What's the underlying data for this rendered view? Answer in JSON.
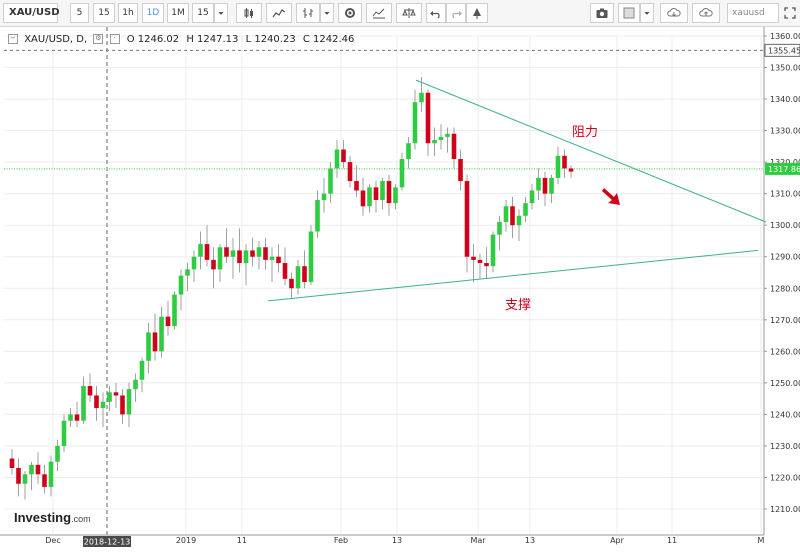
{
  "toolbar": {
    "symbol": "XAU/USD",
    "intervals": [
      "5",
      "15",
      "1h",
      "1D",
      "1M"
    ],
    "selected_interval": "1D",
    "interval_select": "15",
    "search_value": "xauusd",
    "icons": [
      "candles-icon",
      "area-chart-icon",
      "bars-chart-icon",
      "dropdown-chevron-icon",
      "settings-gear-icon",
      "indicators-icon",
      "scales-compare-icon",
      "undo-icon",
      "redo-icon",
      "drawing-tools-icon",
      "camera-icon",
      "template-square-icon",
      "dropdown-chevron-icon",
      "cloud-load-icon",
      "cloud-save-icon",
      "fullscreen-icon"
    ]
  },
  "legend": {
    "symbol": "XAU/USD, D,",
    "open": "O 1246.02",
    "high": "H 1247.13",
    "low": "L 1240.23",
    "close": "C 1242.46"
  },
  "price_axis": {
    "ticks": [
      "1360.00",
      "1350.00",
      "1340.00",
      "1330.00",
      "1320.00",
      "1310.00",
      "1300.00",
      "1290.00",
      "1280.00",
      "1270.00",
      "1260.00",
      "1250.00",
      "1240.00",
      "1230.00",
      "1220.00",
      "1210.00"
    ],
    "dashed_level_label": "1355.45",
    "current_price_label": "1317.86"
  },
  "time_axis": {
    "labels": [
      "Dec",
      "2019",
      "11",
      "Feb",
      "13",
      "Mar",
      "13",
      "Apr",
      "11",
      "M"
    ],
    "crosshair_date": "2018-12-13"
  },
  "annotations": {
    "resistance": "阻力",
    "support": "支撑"
  },
  "branding": {
    "logo": "Investing",
    "logo_suffix": ".com"
  },
  "colors": {
    "up": "#2ecc40",
    "down": "#d0021b",
    "trendline": "#3bb38a",
    "current_price": "#2ecc40",
    "annotation": "#d0021b"
  },
  "chart_data": {
    "type": "candlestick",
    "symbol": "XAU/USD",
    "timeframe": "D",
    "ylim": [
      1205,
      1365
    ],
    "resistance_line": [
      [
        1346,
        1301
      ]
    ],
    "support_line": [
      [
        1276,
        1292
      ]
    ],
    "current_price": 1317.86,
    "dashed_level": 1355.45,
    "candles": [
      [
        1226,
        1229,
        1221,
        1223
      ],
      [
        1223,
        1226,
        1214,
        1218
      ],
      [
        1218,
        1222,
        1213,
        1221
      ],
      [
        1221,
        1225,
        1216,
        1224
      ],
      [
        1224,
        1228,
        1218,
        1221
      ],
      [
        1221,
        1224,
        1215,
        1217
      ],
      [
        1217,
        1227,
        1214,
        1225
      ],
      [
        1225,
        1232,
        1222,
        1230
      ],
      [
        1230,
        1240,
        1228,
        1238
      ],
      [
        1238,
        1242,
        1236,
        1240
      ],
      [
        1240,
        1244,
        1236,
        1238
      ],
      [
        1238,
        1252,
        1237,
        1249
      ],
      [
        1249,
        1253,
        1244,
        1246
      ],
      [
        1246,
        1249,
        1238,
        1242
      ],
      [
        1242,
        1247,
        1236,
        1244
      ],
      [
        1244,
        1249,
        1241,
        1247
      ],
      [
        1247,
        1250,
        1242,
        1246
      ],
      [
        1246,
        1248,
        1237,
        1240
      ],
      [
        1240,
        1250,
        1236,
        1248
      ],
      [
        1248,
        1253,
        1244,
        1251
      ],
      [
        1251,
        1258,
        1247,
        1257
      ],
      [
        1257,
        1269,
        1253,
        1266
      ],
      [
        1266,
        1272,
        1257,
        1260
      ],
      [
        1260,
        1274,
        1258,
        1271
      ],
      [
        1271,
        1276,
        1265,
        1268
      ],
      [
        1268,
        1279,
        1267,
        1278
      ],
      [
        1278,
        1286,
        1273,
        1284
      ],
      [
        1284,
        1288,
        1279,
        1286
      ],
      [
        1286,
        1292,
        1282,
        1290
      ],
      [
        1290,
        1298,
        1286,
        1294
      ],
      [
        1294,
        1300,
        1287,
        1289
      ],
      [
        1289,
        1293,
        1280,
        1286
      ],
      [
        1286,
        1294,
        1282,
        1293
      ],
      [
        1293,
        1299,
        1288,
        1290
      ],
      [
        1290,
        1296,
        1283,
        1292
      ],
      [
        1292,
        1299,
        1285,
        1288
      ],
      [
        1288,
        1294,
        1281,
        1292
      ],
      [
        1292,
        1296,
        1287,
        1290
      ],
      [
        1290,
        1295,
        1286,
        1293
      ],
      [
        1293,
        1296,
        1286,
        1289
      ],
      [
        1289,
        1293,
        1282,
        1290
      ],
      [
        1290,
        1294,
        1285,
        1288
      ],
      [
        1288,
        1293,
        1281,
        1283
      ],
      [
        1283,
        1285,
        1277,
        1280
      ],
      [
        1280,
        1289,
        1278,
        1287
      ],
      [
        1287,
        1292,
        1280,
        1282
      ],
      [
        1282,
        1300,
        1281,
        1298
      ],
      [
        1298,
        1311,
        1296,
        1308
      ],
      [
        1308,
        1315,
        1304,
        1310
      ],
      [
        1310,
        1320,
        1307,
        1318
      ],
      [
        1318,
        1327,
        1315,
        1324
      ],
      [
        1324,
        1327,
        1318,
        1320
      ],
      [
        1320,
        1322,
        1312,
        1314
      ],
      [
        1314,
        1319,
        1309,
        1311
      ],
      [
        1311,
        1315,
        1303,
        1306
      ],
      [
        1306,
        1313,
        1304,
        1312
      ],
      [
        1312,
        1314,
        1304,
        1308
      ],
      [
        1308,
        1315,
        1305,
        1314
      ],
      [
        1314,
        1316,
        1303,
        1307
      ],
      [
        1307,
        1313,
        1305,
        1312
      ],
      [
        1312,
        1323,
        1311,
        1321
      ],
      [
        1321,
        1328,
        1318,
        1326
      ],
      [
        1326,
        1343,
        1324,
        1339
      ],
      [
        1339,
        1347,
        1336,
        1342
      ],
      [
        1342,
        1343,
        1322,
        1326
      ],
      [
        1326,
        1331,
        1322,
        1327
      ],
      [
        1327,
        1332,
        1324,
        1328
      ],
      [
        1328,
        1331,
        1323,
        1329
      ],
      [
        1329,
        1331,
        1318,
        1321
      ],
      [
        1321,
        1324,
        1311,
        1314
      ],
      [
        1314,
        1316,
        1285,
        1290
      ],
      [
        1290,
        1294,
        1282,
        1289
      ],
      [
        1289,
        1291,
        1283,
        1288
      ],
      [
        1288,
        1293,
        1283,
        1287
      ],
      [
        1287,
        1298,
        1285,
        1297
      ],
      [
        1297,
        1303,
        1292,
        1301
      ],
      [
        1301,
        1308,
        1298,
        1306
      ],
      [
        1306,
        1309,
        1296,
        1300
      ],
      [
        1300,
        1305,
        1295,
        1303
      ],
      [
        1303,
        1309,
        1301,
        1307
      ],
      [
        1307,
        1313,
        1305,
        1311
      ],
      [
        1311,
        1318,
        1308,
        1315
      ],
      [
        1315,
        1317,
        1306,
        1310
      ],
      [
        1310,
        1316,
        1307,
        1315
      ],
      [
        1315,
        1325,
        1313,
        1322
      ],
      [
        1322,
        1324,
        1315,
        1318
      ],
      [
        1318,
        1319,
        1315,
        1317
      ]
    ]
  }
}
